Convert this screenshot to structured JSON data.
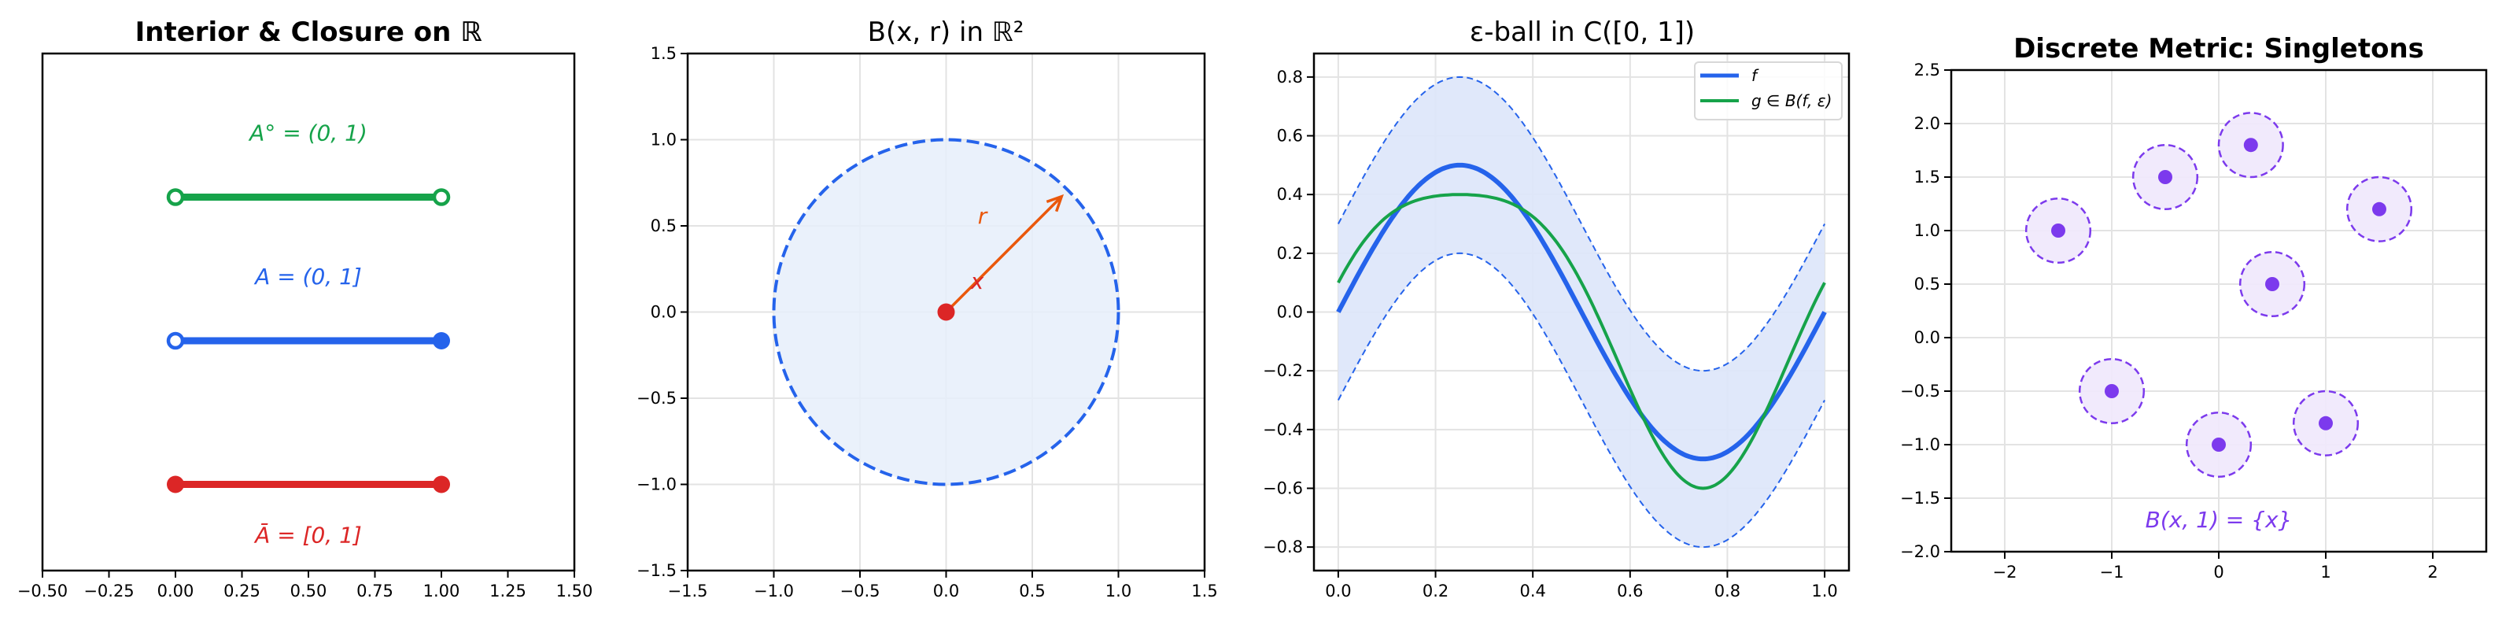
{
  "figure": {
    "panel_titles": [
      "Interior & Closure on ℝ",
      "B(x, r) in ℝ²",
      "ε-ball in C([0, 1])",
      "Discrete Metric: Singletons"
    ]
  },
  "colors": {
    "green": "#16a34a",
    "blue": "#2563eb",
    "red": "#dc2626",
    "orange": "#ea580c",
    "purple": "#7c3aed",
    "ball_fill": "#e6eefa",
    "band_fill": "#dde6fa",
    "singleton_fill": "#efe8fc",
    "grid": "#e3e3e3"
  },
  "chart_data": [
    {
      "type": "line",
      "title": "Interior & Closure on ℝ",
      "xlabel": "",
      "ylabel": "",
      "xlim": [
        -0.5,
        1.5
      ],
      "ylim": [
        -0.6,
        3.0
      ],
      "xticks": [
        "−0.50",
        "−0.25",
        "0.00",
        "0.25",
        "0.50",
        "0.75",
        "1.00",
        "1.25",
        "1.50"
      ],
      "xtick_values": [
        -0.5,
        -0.25,
        0,
        0.25,
        0.5,
        0.75,
        1.0,
        1.25,
        1.5
      ],
      "yticks": [],
      "grid": false,
      "series": [
        {
          "name": "A° = (0, 1)",
          "label": "A° = (0, 1)",
          "color": "#16a34a",
          "x": [
            0,
            1
          ],
          "y": 2,
          "left_closed": false,
          "right_closed": false,
          "label_y": 2.45
        },
        {
          "name": "A = (0, 1]",
          "label": "A = (0, 1]",
          "color": "#2563eb",
          "x": [
            0,
            1
          ],
          "y": 1,
          "left_closed": false,
          "right_closed": true,
          "label_y": 1.45
        },
        {
          "name": "Ā = [0, 1]",
          "label": "Ā = [0, 1]",
          "color": "#dc2626",
          "x": [
            0,
            1
          ],
          "y": 0,
          "left_closed": true,
          "right_closed": true,
          "label_y": -0.35
        }
      ]
    },
    {
      "type": "scatter",
      "title": "B(x, r) in ℝ²",
      "xlabel": "",
      "ylabel": "",
      "xlim": [
        -1.5,
        1.5
      ],
      "ylim": [
        -1.5,
        1.5
      ],
      "xticks": [
        "−1.5",
        "−1.0",
        "−0.5",
        "0.0",
        "0.5",
        "1.0",
        "1.5"
      ],
      "xtick_values": [
        -1.5,
        -1.0,
        -0.5,
        0,
        0.5,
        1.0,
        1.5
      ],
      "yticks": [
        "−1.5",
        "−1.0",
        "−0.5",
        "0.0",
        "0.5",
        "1.0",
        "1.5"
      ],
      "ytick_values": [
        -1.5,
        -1.0,
        -0.5,
        0,
        0.5,
        1.0,
        1.5
      ],
      "grid": true,
      "ball": {
        "center": [
          0,
          0
        ],
        "radius": 1.0,
        "boundary": "dashed",
        "color": "#2563eb"
      },
      "center_point": {
        "x": 0,
        "y": 0,
        "label": "x",
        "label_pos": [
          0.18,
          0.18
        ],
        "color": "#dc2626"
      },
      "radius_arrow": {
        "from": [
          0,
          0
        ],
        "to": [
          0.67,
          0.67
        ],
        "label": "r",
        "label_pos": [
          0.21,
          0.56
        ],
        "color": "#ea580c"
      }
    },
    {
      "type": "line",
      "title": "ε-ball in C([0, 1])",
      "xlabel": "",
      "ylabel": "",
      "xlim": [
        -0.05,
        1.05
      ],
      "ylim": [
        -0.88,
        0.88
      ],
      "xticks": [
        "0.0",
        "0.2",
        "0.4",
        "0.6",
        "0.8",
        "1.0"
      ],
      "xtick_values": [
        0,
        0.2,
        0.4,
        0.6,
        0.8,
        1.0
      ],
      "yticks": [
        "−0.8",
        "−0.6",
        "−0.4",
        "−0.2",
        "0.0",
        "0.2",
        "0.4",
        "0.6",
        "0.8"
      ],
      "ytick_values": [
        -0.8,
        -0.6,
        -0.4,
        -0.2,
        0,
        0.2,
        0.4,
        0.6,
        0.8
      ],
      "grid": true,
      "epsilon": 0.3,
      "x": [
        0,
        0.05,
        0.1,
        0.15,
        0.2,
        0.25,
        0.3,
        0.35,
        0.4,
        0.45,
        0.5,
        0.55,
        0.6,
        0.65,
        0.7,
        0.75,
        0.8,
        0.85,
        0.9,
        0.95,
        1.0
      ],
      "series": [
        {
          "name": "f",
          "color": "#2563eb",
          "values": [
            0.0,
            0.155,
            0.294,
            0.405,
            0.476,
            0.5,
            0.476,
            0.405,
            0.294,
            0.155,
            0.0,
            -0.155,
            -0.294,
            -0.405,
            -0.476,
            -0.5,
            -0.476,
            -0.405,
            -0.294,
            -0.155,
            0.0
          ]
        },
        {
          "name": "g ∈ B(f, ε)",
          "color": "#16a34a",
          "values": [
            0.1,
            0.236,
            0.325,
            0.374,
            0.395,
            0.4,
            0.395,
            0.374,
            0.325,
            0.236,
            0.1,
            -0.074,
            -0.263,
            -0.436,
            -0.557,
            -0.6,
            -0.557,
            -0.436,
            -0.263,
            -0.074,
            0.1
          ]
        },
        {
          "name": "f + ε",
          "color": "#2563eb",
          "style": "dashed",
          "values": [
            0.3,
            0.455,
            0.594,
            0.705,
            0.776,
            0.8,
            0.776,
            0.705,
            0.594,
            0.455,
            0.3,
            0.145,
            0.006,
            -0.105,
            -0.176,
            -0.2,
            -0.176,
            -0.105,
            0.006,
            0.145,
            0.3
          ]
        },
        {
          "name": "f − ε",
          "color": "#2563eb",
          "style": "dashed",
          "values": [
            -0.3,
            -0.145,
            -0.006,
            0.105,
            0.176,
            0.2,
            0.176,
            0.105,
            -0.006,
            -0.145,
            -0.3,
            -0.455,
            -0.594,
            -0.705,
            -0.776,
            -0.8,
            -0.776,
            -0.705,
            -0.594,
            -0.455,
            -0.3
          ]
        }
      ],
      "legend": {
        "position": "upper right",
        "entries": [
          "f",
          "g ∈ B(f, ε)"
        ]
      }
    },
    {
      "type": "scatter",
      "title": "Discrete Metric: Singletons",
      "xlabel": "",
      "ylabel": "",
      "xlim": [
        -2.5,
        2.5
      ],
      "ylim": [
        -2.0,
        2.5
      ],
      "xticks": [
        "−2",
        "−1",
        "0",
        "1",
        "2"
      ],
      "xtick_values": [
        -2,
        -1,
        0,
        1,
        2
      ],
      "yticks": [
        "−2.0",
        "−1.5",
        "−1.0",
        "−0.5",
        "0.0",
        "0.5",
        "1.0",
        "1.5",
        "2.0",
        "2.5"
      ],
      "ytick_values": [
        -2.0,
        -1.5,
        -1.0,
        -0.5,
        0,
        0.5,
        1.0,
        1.5,
        2.0,
        2.5
      ],
      "grid": true,
      "points": [
        {
          "x": -1.5,
          "y": 1.0
        },
        {
          "x": -0.5,
          "y": 1.5
        },
        {
          "x": 0.3,
          "y": 1.8
        },
        {
          "x": 1.5,
          "y": 1.2
        },
        {
          "x": 0.5,
          "y": 0.5
        },
        {
          "x": -1.0,
          "y": -0.5
        },
        {
          "x": 0.0,
          "y": -1.0
        },
        {
          "x": 1.0,
          "y": -0.8
        }
      ],
      "ball_radius": 0.3,
      "annotation": {
        "text": "B(x, 1) = {x}",
        "x": 0.0,
        "y": -1.7
      }
    }
  ],
  "annotations": {
    "interior": "A° = (0, 1)",
    "set": "A = (0, 1]",
    "closure": "Ā = [0, 1]",
    "center_label": "x",
    "radius_label": "r",
    "legend_f": "f",
    "legend_g": "g ∈ B(f, ε)",
    "singleton": "B(x, 1) = {x}"
  }
}
